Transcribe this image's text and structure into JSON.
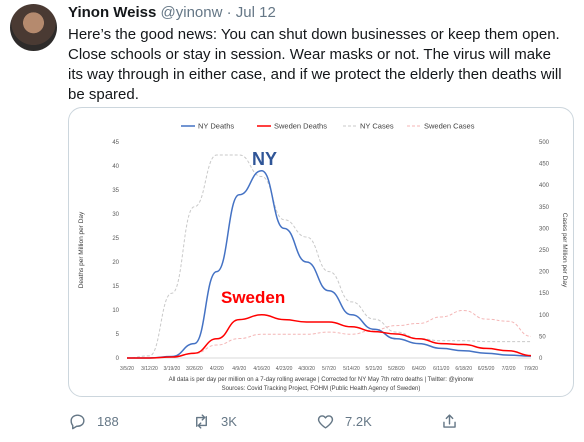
{
  "tweet": {
    "author_name": "Yinon Weiss",
    "handle": "@yinonw",
    "separator": "·",
    "date": "Jul 12",
    "text": "Here’s the good news: You can shut down businesses or keep them open. Close schools or stay in session. Wear masks or not. The virus will make its way through in either case, and if we protect the elderly then deaths will be spared."
  },
  "actions": {
    "replies": "188",
    "retweets": "3K",
    "likes": "7.2K"
  },
  "chart_data": {
    "type": "line",
    "xlabel": "",
    "ylabel": "Deaths per Million per Day",
    "y2label": "Cases per Million per Day",
    "ylim": [
      0,
      45
    ],
    "y2lim": [
      0,
      500
    ],
    "y_ticks": [
      "0",
      "5",
      "10",
      "15",
      "20",
      "25",
      "30",
      "35",
      "40",
      "45"
    ],
    "y2_ticks": [
      "0",
      "50",
      "100",
      "150",
      "200",
      "250",
      "300",
      "350",
      "400",
      "450",
      "500"
    ],
    "categories": [
      "3/5/20",
      "3/12/20",
      "3/19/20",
      "3/26/20",
      "4/2/20",
      "4/9/20",
      "4/16/20",
      "4/23/20",
      "4/30/20",
      "5/7/20",
      "5/14/20",
      "5/21/20",
      "5/28/20",
      "6/4/20",
      "6/11/20",
      "6/18/20",
      "6/25/20",
      "7/2/20",
      "7/9/20"
    ],
    "legend_position": "top",
    "series": [
      {
        "name": "NY Deaths",
        "axis": "left",
        "color": "#4472c4",
        "style": "solid",
        "values": [
          0,
          0,
          0.3,
          3,
          18,
          34,
          39,
          27,
          20,
          14,
          9,
          6,
          4,
          3,
          2,
          1.5,
          1,
          0.6,
          0.4
        ]
      },
      {
        "name": "Sweden Deaths",
        "axis": "left",
        "color": "#ff0000",
        "style": "solid",
        "values": [
          0,
          0,
          0.2,
          1,
          4,
          8,
          9,
          8,
          7.5,
          7.5,
          6.5,
          5.5,
          5,
          4,
          3,
          2.8,
          2,
          1.5,
          0.5
        ]
      },
      {
        "name": "NY Cases",
        "axis": "right",
        "color": "#c9c9c9",
        "style": "dashed",
        "values": [
          0,
          5,
          150,
          350,
          470,
          470,
          420,
          320,
          280,
          200,
          130,
          90,
          60,
          45,
          40,
          40,
          38,
          38,
          38
        ]
      },
      {
        "name": "Sweden Cases",
        "axis": "right",
        "color": "#f4b6b6",
        "style": "dashed",
        "values": [
          0,
          0,
          3,
          10,
          30,
          45,
          55,
          55,
          55,
          60,
          55,
          65,
          75,
          80,
          95,
          110,
          90,
          85,
          50
        ]
      }
    ],
    "annotations": [
      "NY",
      "Sweden"
    ],
    "footer_lines": [
      "All data is per day per million on a 7-day rolling average | Corrected for NY May 7th retro deaths | Twitter: @yinonw",
      "Sources: Covid Tracking Project, FOHM (Public Health Agency of Sweden)"
    ]
  }
}
